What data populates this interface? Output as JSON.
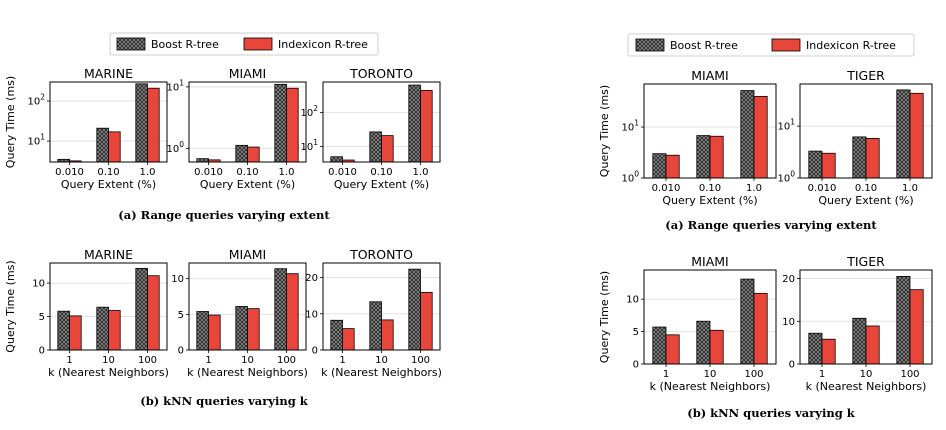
{
  "colors": {
    "boost": "#6f6f6f",
    "indexicon": "#e8463a",
    "edge": "#000000"
  },
  "legend_left": {
    "boost": "Boost R-tree",
    "indexicon": "Indexicon R-tree"
  },
  "legend_right": {
    "boost": "Boost R-tree",
    "indexicon": "Indexicon R-tree"
  },
  "captions": {
    "left_a": "(a) Range queries varying extent",
    "left_b": "(b) kNN queries varying k",
    "right_a": "(a) Range queries varying extent",
    "right_b": "(b) kNN queries varying k"
  },
  "chart_data": [
    {
      "id": "la1",
      "type": "bar",
      "title": "MARINE",
      "scale": "log",
      "ylim": [
        3,
        300
      ],
      "yticks": [
        10,
        100
      ],
      "yticklabels": [
        "10^1",
        "10^2"
      ],
      "categories": [
        "0.010",
        "0.10",
        "1.0"
      ],
      "xlabel": "Query Extent (%)",
      "ylabel": "Query Time (ms)",
      "series": [
        {
          "name": "Boost R-tree",
          "values": [
            3.5,
            21,
            270
          ]
        },
        {
          "name": "Indexicon R-tree",
          "values": [
            3.2,
            17,
            210
          ]
        }
      ]
    },
    {
      "id": "la2",
      "type": "bar",
      "title": "MIAMI",
      "scale": "log",
      "ylim": [
        0.6,
        12
      ],
      "yticks": [
        1,
        10
      ],
      "yticklabels": [
        "10^0",
        "10^1"
      ],
      "categories": [
        "0.010",
        "0.10",
        "1.0"
      ],
      "xlabel": "Query Extent (%)",
      "ylabel": "",
      "series": [
        {
          "name": "Boost R-tree",
          "values": [
            0.68,
            1.12,
            11
          ]
        },
        {
          "name": "Indexicon R-tree",
          "values": [
            0.65,
            1.05,
            9.5
          ]
        }
      ]
    },
    {
      "id": "la3",
      "type": "bar",
      "title": "TORONTO",
      "scale": "log",
      "ylim": [
        3.5,
        800
      ],
      "yticks": [
        10,
        100
      ],
      "yticklabels": [
        "10^1",
        "10^2"
      ],
      "categories": [
        "0.010",
        "0.10",
        "1.0"
      ],
      "xlabel": "Query Extent (%)",
      "ylabel": "",
      "series": [
        {
          "name": "Boost R-tree",
          "values": [
            5,
            27,
            650
          ]
        },
        {
          "name": "Indexicon R-tree",
          "values": [
            4,
            21,
            450
          ]
        }
      ]
    },
    {
      "id": "lb1",
      "type": "bar",
      "title": "MARINE",
      "scale": "linear",
      "ylim": [
        0,
        13
      ],
      "yticks": [
        0,
        5,
        10
      ],
      "yticklabels": [
        "0",
        "5",
        "10"
      ],
      "categories": [
        "1",
        "10",
        "100"
      ],
      "xlabel": "k (Nearest Neighbors)",
      "ylabel": "Query Time (ms)",
      "series": [
        {
          "name": "Boost R-tree",
          "values": [
            5.8,
            6.4,
            12.2
          ]
        },
        {
          "name": "Indexicon R-tree",
          "values": [
            5.1,
            5.9,
            11.1
          ]
        }
      ]
    },
    {
      "id": "lb2",
      "type": "bar",
      "title": "MIAMI",
      "scale": "linear",
      "ylim": [
        0,
        12.2
      ],
      "yticks": [
        0,
        5,
        10
      ],
      "yticklabels": [
        "0",
        "5",
        "10"
      ],
      "categories": [
        "1",
        "10",
        "100"
      ],
      "xlabel": "k (Nearest Neighbors)",
      "ylabel": "",
      "series": [
        {
          "name": "Boost R-tree",
          "values": [
            5.4,
            6.1,
            11.4
          ]
        },
        {
          "name": "Indexicon R-tree",
          "values": [
            4.9,
            5.8,
            10.7
          ]
        }
      ]
    },
    {
      "id": "lb3",
      "type": "bar",
      "title": "TORONTO",
      "scale": "linear",
      "ylim": [
        0,
        24
      ],
      "yticks": [
        0,
        10,
        20
      ],
      "yticklabels": [
        "0",
        "10",
        "20"
      ],
      "categories": [
        "1",
        "10",
        "100"
      ],
      "xlabel": "k (Nearest Neighbors)",
      "ylabel": "",
      "series": [
        {
          "name": "Boost R-tree",
          "values": [
            8.2,
            13.3,
            22.3
          ]
        },
        {
          "name": "Indexicon R-tree",
          "values": [
            5.9,
            8.3,
            15.9
          ]
        }
      ]
    },
    {
      "id": "ra1",
      "type": "bar",
      "title": "MIAMI",
      "scale": "log",
      "ylim": [
        1,
        70
      ],
      "yticks": [
        1,
        10
      ],
      "yticklabels": [
        "10^0",
        "10^1"
      ],
      "categories": [
        "0.010",
        "0.10",
        "1.0"
      ],
      "xlabel": "Query Extent (%)",
      "ylabel": "Query Time (ms)",
      "series": [
        {
          "name": "Boost R-tree",
          "values": [
            3.0,
            6.8,
            52
          ]
        },
        {
          "name": "Indexicon R-tree",
          "values": [
            2.8,
            6.6,
            40
          ]
        }
      ]
    },
    {
      "id": "ra2",
      "type": "bar",
      "title": "TIGER",
      "scale": "log",
      "ylim": [
        1,
        65
      ],
      "yticks": [
        1,
        10
      ],
      "yticklabels": [
        "10^0",
        "10^1"
      ],
      "categories": [
        "0.010",
        "0.10",
        "1.0"
      ],
      "xlabel": "Query Extent (%)",
      "ylabel": "",
      "series": [
        {
          "name": "Boost R-tree",
          "values": [
            3.3,
            6.2,
            50
          ]
        },
        {
          "name": "Indexicon R-tree",
          "values": [
            3.0,
            5.8,
            43
          ]
        }
      ]
    },
    {
      "id": "rb1",
      "type": "bar",
      "title": "MIAMI",
      "scale": "linear",
      "ylim": [
        0,
        14.5
      ],
      "yticks": [
        0,
        5,
        10
      ],
      "yticklabels": [
        "0",
        "5",
        "10"
      ],
      "categories": [
        "1",
        "10",
        "100"
      ],
      "xlabel": "k (Nearest Neighbors)",
      "ylabel": "Query Time (ms)",
      "series": [
        {
          "name": "Boost R-tree",
          "values": [
            5.7,
            6.6,
            13.1
          ]
        },
        {
          "name": "Indexicon R-tree",
          "values": [
            4.5,
            5.2,
            10.9
          ]
        }
      ]
    },
    {
      "id": "rb2",
      "type": "bar",
      "title": "TIGER",
      "scale": "linear",
      "ylim": [
        0,
        22
      ],
      "yticks": [
        0,
        10,
        20
      ],
      "yticklabels": [
        "0",
        "10",
        "20"
      ],
      "categories": [
        "1",
        "10",
        "100"
      ],
      "xlabel": "k (Nearest Neighbors)",
      "ylabel": "",
      "series": [
        {
          "name": "Boost R-tree",
          "values": [
            7.2,
            10.7,
            20.5
          ]
        },
        {
          "name": "Indexicon R-tree",
          "values": [
            5.8,
            8.9,
            17.4
          ]
        }
      ]
    }
  ]
}
